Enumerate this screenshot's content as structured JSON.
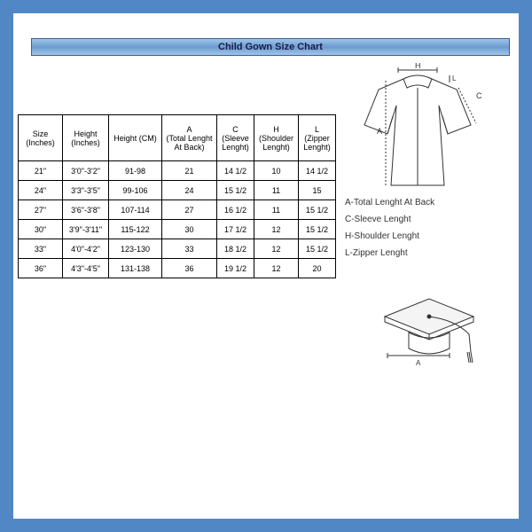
{
  "title": "Child Gown Size Chart",
  "columns": [
    {
      "l1": "Size",
      "l2": "(Inches)",
      "cls": "c-size"
    },
    {
      "l1": "Height",
      "l2": "(Inches)",
      "cls": "c-hin"
    },
    {
      "l1": "Height (CM)",
      "l2": "",
      "cls": "c-hcm"
    },
    {
      "l1": "A",
      "l2": "(Total Lenght At Back)",
      "cls": "c-a"
    },
    {
      "l1": "C",
      "l2": "(Sleeve Lenght)",
      "cls": "c-c"
    },
    {
      "l1": "H",
      "l2": "(Shoulder Lenght)",
      "cls": "c-h"
    },
    {
      "l1": "L",
      "l2": "(Zipper Lenght)",
      "cls": "c-l"
    }
  ],
  "rows": [
    [
      "21\"",
      "3'0\"-3'2\"",
      "91-98",
      "21",
      "14 1/2",
      "10",
      "14 1/2"
    ],
    [
      "24\"",
      "3'3\"-3'5\"",
      "99-106",
      "24",
      "15 1/2",
      "11",
      "15"
    ],
    [
      "27\"",
      "3'6\"-3'8\"",
      "107-114",
      "27",
      "16 1/2",
      "11",
      "15 1/2"
    ],
    [
      "30\"",
      "3'9\"-3'11\"",
      "115-122",
      "30",
      "17 1/2",
      "12",
      "15 1/2"
    ],
    [
      "33\"",
      "4'0\"-4'2\"",
      "123-130",
      "33",
      "18 1/2",
      "12",
      "15 1/2"
    ],
    [
      "36\"",
      "4'3\"-4'5\"",
      "131-138",
      "36",
      "19 1/2",
      "12",
      "20"
    ]
  ],
  "legend": {
    "a": "A-Total Lenght At Back",
    "c": "C-Sleeve Lenght",
    "h": "H-Shoulder Lenght",
    "l": "L-Zipper Lenght"
  },
  "diagram_labels": {
    "h": "H",
    "c": "C",
    "a": "A",
    "l": "L",
    "cap_a": "A"
  },
  "colors": {
    "page_bg": "#5087c4",
    "title_text": "#1a1a4a",
    "border": "#000000",
    "stroke": "#333333"
  }
}
